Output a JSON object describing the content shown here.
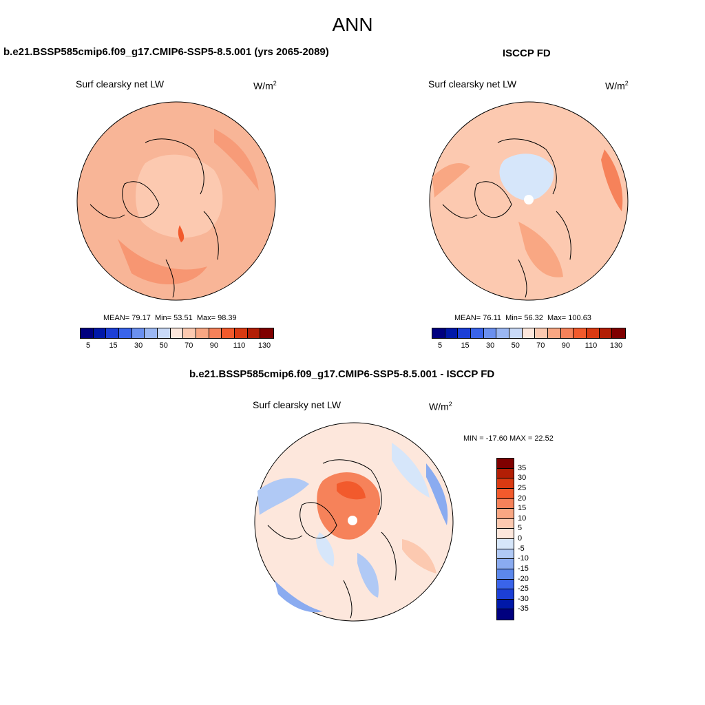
{
  "page_title": "ANN",
  "panels": [
    {
      "title": "b.e21.BSSP585cmip6.f09_g17.CMIP6-SSP5-8.5.001 (yrs 2065-2089)",
      "variable": "Surf clearsky net LW",
      "units_base": "W/m",
      "units_exp": "2",
      "stats": {
        "mean_label": "MEAN=",
        "mean": "79.17",
        "min_label": "Min=",
        "min": "53.51",
        "max_label": "Max=",
        "max": "98.39"
      },
      "colorbar_ticks": [
        "5",
        "15",
        "30",
        "50",
        "70",
        "90",
        "110",
        "130"
      ],
      "fill": "#f6a683"
    },
    {
      "title": "ISCCP FD",
      "variable": "Surf clearsky net LW",
      "units_base": "W/m",
      "units_exp": "2",
      "stats": {
        "mean_label": "MEAN=",
        "mean": "76.11",
        "min_label": "Min=",
        "min": "56.32",
        "max_label": "Max=",
        "max": "100.63"
      },
      "colorbar_ticks": [
        "5",
        "15",
        "30",
        "50",
        "70",
        "90",
        "110",
        "130"
      ],
      "fill": "#f8b597"
    }
  ],
  "difference": {
    "title": "b.e21.BSSP585cmip6.f09_g17.CMIP6-SSP5-8.5.001 - ISCCP FD",
    "variable": "Surf clearsky net LW",
    "units_base": "W/m",
    "units_exp": "2",
    "minmax": "MIN = -17.60 MAX =  22.52",
    "colorbar_ticks": [
      "35",
      "30",
      "25",
      "20",
      "15",
      "10",
      "5",
      "0",
      "-5",
      "-10",
      "-15",
      "-20",
      "-25",
      "-30",
      "-35"
    ]
  },
  "colors": {
    "abs_scale": [
      "#00007f",
      "#0018a8",
      "#1c3fd6",
      "#3a64ea",
      "#6b90ef",
      "#9bb7f3",
      "#c9daf8",
      "#fde7dc",
      "#fcc9b0",
      "#f9a783",
      "#f6825a",
      "#f25a2c",
      "#d93a12",
      "#b21e05",
      "#7f0000"
    ],
    "diff_scale": [
      "#7f0000",
      "#b21e05",
      "#d93a12",
      "#f25a2c",
      "#f6825a",
      "#f9a783",
      "#fcc9b0",
      "#fde7dc",
      "#d6e6fa",
      "#b0c9f5",
      "#8aabf0",
      "#5c88ec",
      "#3a64ea",
      "#1c3fd6",
      "#0018a8",
      "#00007f"
    ]
  }
}
